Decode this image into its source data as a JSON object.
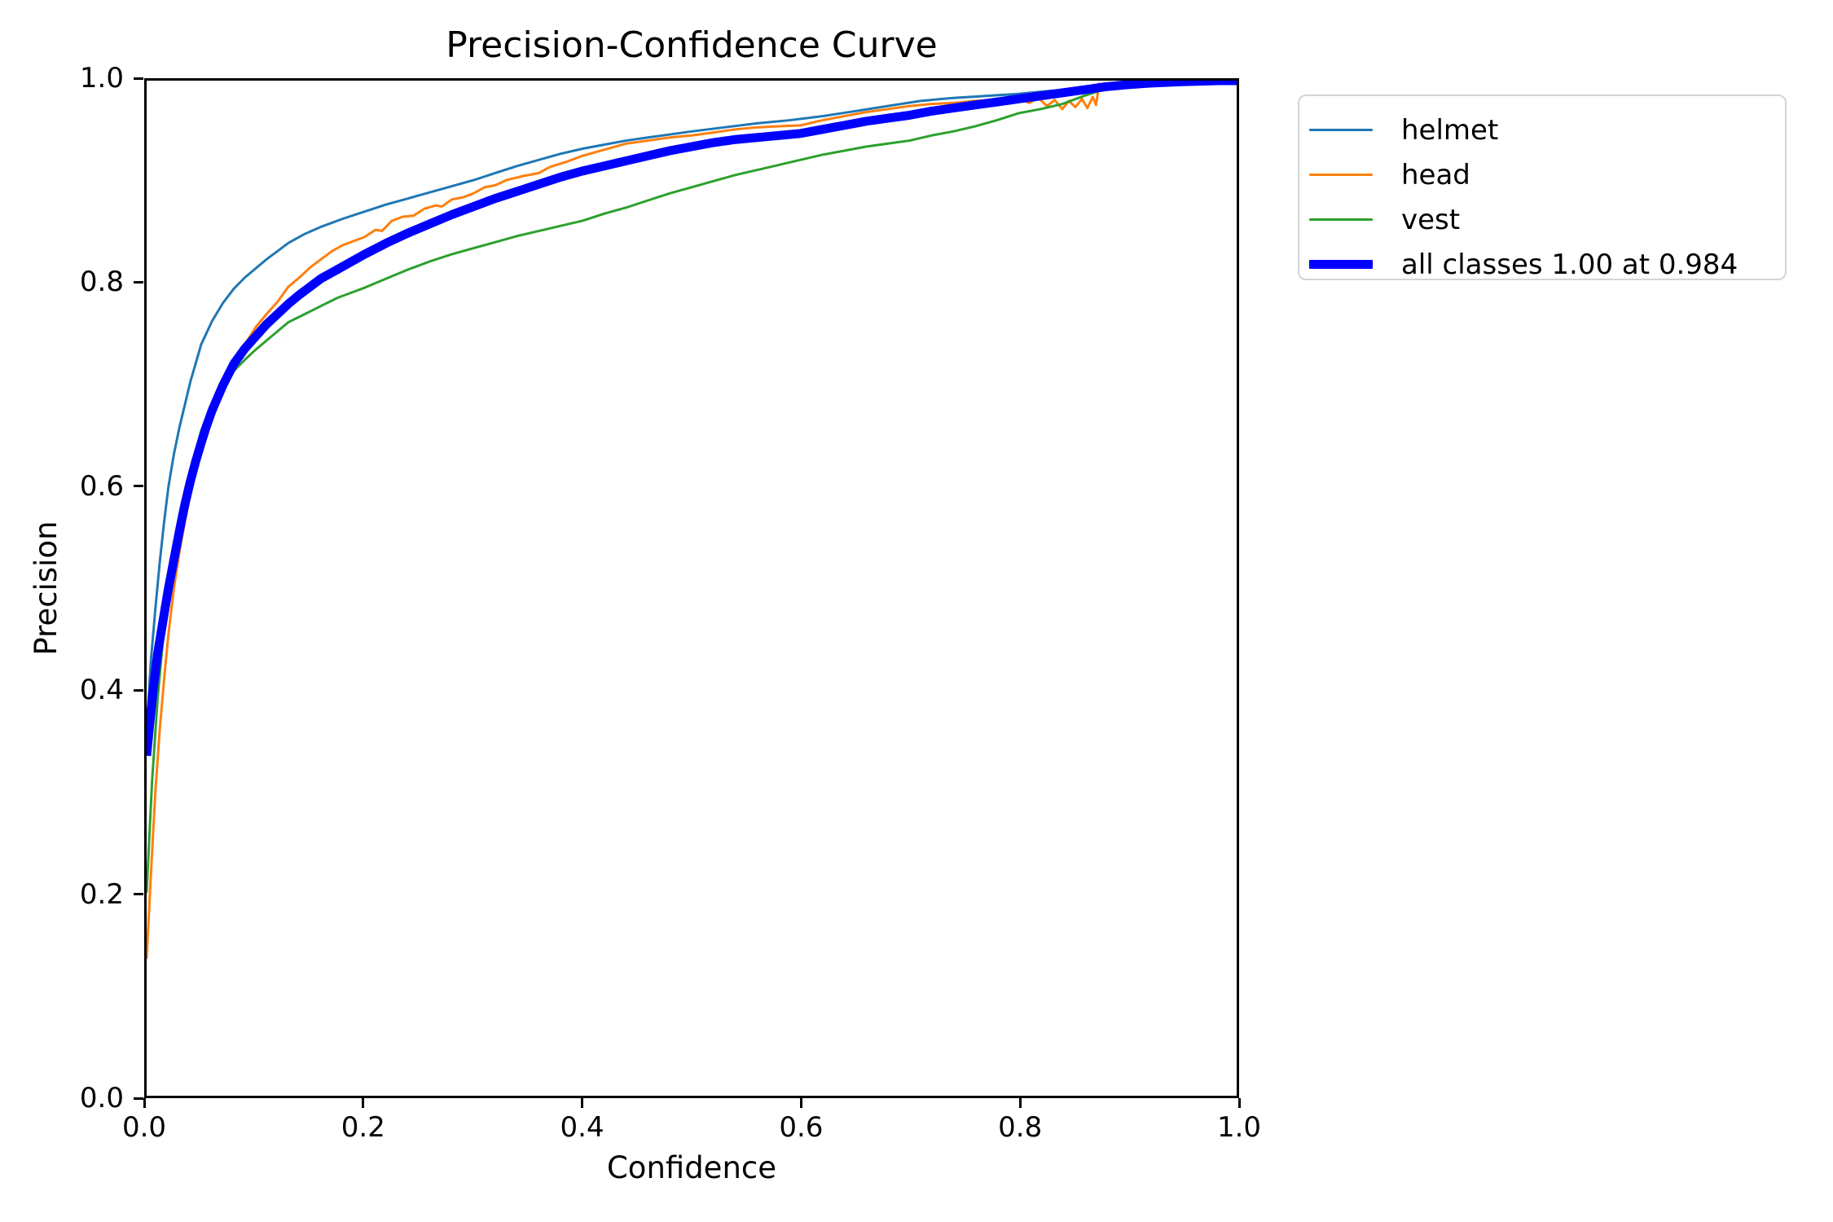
{
  "chart_data": {
    "type": "line",
    "title": "Precision-Confidence Curve",
    "xlabel": "Confidence",
    "ylabel": "Precision",
    "xlim": [
      0.0,
      1.0
    ],
    "ylim": [
      0.0,
      1.0
    ],
    "x_ticks": [
      "0.0",
      "0.2",
      "0.4",
      "0.6",
      "0.8",
      "1.0"
    ],
    "y_ticks": [
      "0.0",
      "0.2",
      "0.4",
      "0.6",
      "0.8",
      "1.0"
    ],
    "grid": false,
    "legend_position": "outside-upper-right",
    "axis_color": "#000000",
    "legend_border_color": "#d4d4d4",
    "series": [
      {
        "name": "helmet",
        "legend_label": "helmet",
        "color": "#1f77b4",
        "line_width": 3,
        "points": [
          [
            0.0,
            0.36
          ],
          [
            0.004,
            0.43
          ],
          [
            0.008,
            0.48
          ],
          [
            0.012,
            0.525
          ],
          [
            0.016,
            0.565
          ],
          [
            0.02,
            0.6
          ],
          [
            0.025,
            0.632
          ],
          [
            0.03,
            0.658
          ],
          [
            0.04,
            0.703
          ],
          [
            0.05,
            0.74
          ],
          [
            0.06,
            0.763
          ],
          [
            0.07,
            0.781
          ],
          [
            0.08,
            0.795
          ],
          [
            0.09,
            0.806
          ],
          [
            0.1,
            0.815
          ],
          [
            0.11,
            0.824
          ],
          [
            0.12,
            0.832
          ],
          [
            0.13,
            0.84
          ],
          [
            0.145,
            0.849
          ],
          [
            0.16,
            0.856
          ],
          [
            0.18,
            0.864
          ],
          [
            0.2,
            0.871
          ],
          [
            0.22,
            0.878
          ],
          [
            0.24,
            0.884
          ],
          [
            0.26,
            0.89
          ],
          [
            0.28,
            0.896
          ],
          [
            0.3,
            0.902
          ],
          [
            0.32,
            0.909
          ],
          [
            0.34,
            0.916
          ],
          [
            0.36,
            0.922
          ],
          [
            0.38,
            0.928
          ],
          [
            0.4,
            0.933
          ],
          [
            0.42,
            0.937
          ],
          [
            0.44,
            0.941
          ],
          [
            0.46,
            0.944
          ],
          [
            0.48,
            0.947
          ],
          [
            0.5,
            0.95
          ],
          [
            0.53,
            0.954
          ],
          [
            0.56,
            0.958
          ],
          [
            0.59,
            0.961
          ],
          [
            0.62,
            0.965
          ],
          [
            0.65,
            0.97
          ],
          [
            0.68,
            0.975
          ],
          [
            0.71,
            0.98
          ],
          [
            0.74,
            0.983
          ],
          [
            0.77,
            0.985
          ],
          [
            0.8,
            0.987
          ],
          [
            0.83,
            0.99
          ],
          [
            0.86,
            0.993
          ],
          [
            0.89,
            0.996
          ],
          [
            0.92,
            0.999
          ],
          [
            0.94,
            1.0
          ],
          [
            1.0,
            1.0
          ]
        ]
      },
      {
        "name": "head",
        "legend_label": "head",
        "color": "#ff7f0e",
        "line_width": 3,
        "points": [
          [
            0.0,
            0.135
          ],
          [
            0.004,
            0.22
          ],
          [
            0.008,
            0.3
          ],
          [
            0.012,
            0.36
          ],
          [
            0.016,
            0.41
          ],
          [
            0.02,
            0.455
          ],
          [
            0.025,
            0.5
          ],
          [
            0.03,
            0.535
          ],
          [
            0.035,
            0.565
          ],
          [
            0.04,
            0.592
          ],
          [
            0.045,
            0.615
          ],
          [
            0.05,
            0.635
          ],
          [
            0.055,
            0.655
          ],
          [
            0.06,
            0.67
          ],
          [
            0.07,
            0.698
          ],
          [
            0.08,
            0.72
          ],
          [
            0.09,
            0.74
          ],
          [
            0.1,
            0.757
          ],
          [
            0.11,
            0.77
          ],
          [
            0.12,
            0.782
          ],
          [
            0.13,
            0.797
          ],
          [
            0.14,
            0.806
          ],
          [
            0.15,
            0.816
          ],
          [
            0.16,
            0.824
          ],
          [
            0.17,
            0.832
          ],
          [
            0.18,
            0.838
          ],
          [
            0.19,
            0.842
          ],
          [
            0.2,
            0.846
          ],
          [
            0.21,
            0.853
          ],
          [
            0.216,
            0.852
          ],
          [
            0.225,
            0.862
          ],
          [
            0.235,
            0.866
          ],
          [
            0.245,
            0.867
          ],
          [
            0.255,
            0.874
          ],
          [
            0.265,
            0.877
          ],
          [
            0.271,
            0.876
          ],
          [
            0.28,
            0.883
          ],
          [
            0.29,
            0.885
          ],
          [
            0.3,
            0.889
          ],
          [
            0.31,
            0.895
          ],
          [
            0.32,
            0.897
          ],
          [
            0.33,
            0.902
          ],
          [
            0.345,
            0.906
          ],
          [
            0.36,
            0.909
          ],
          [
            0.37,
            0.915
          ],
          [
            0.385,
            0.92
          ],
          [
            0.4,
            0.926
          ],
          [
            0.42,
            0.932
          ],
          [
            0.44,
            0.938
          ],
          [
            0.46,
            0.941
          ],
          [
            0.48,
            0.944
          ],
          [
            0.5,
            0.946
          ],
          [
            0.52,
            0.949
          ],
          [
            0.54,
            0.952
          ],
          [
            0.56,
            0.954
          ],
          [
            0.58,
            0.955
          ],
          [
            0.6,
            0.956
          ],
          [
            0.62,
            0.961
          ],
          [
            0.64,
            0.965
          ],
          [
            0.66,
            0.969
          ],
          [
            0.68,
            0.972
          ],
          [
            0.7,
            0.975
          ],
          [
            0.72,
            0.977
          ],
          [
            0.74,
            0.978
          ],
          [
            0.76,
            0.98
          ],
          [
            0.78,
            0.981
          ],
          [
            0.8,
            0.982
          ],
          [
            0.81,
            0.978
          ],
          [
            0.818,
            0.983
          ],
          [
            0.826,
            0.975
          ],
          [
            0.833,
            0.981
          ],
          [
            0.84,
            0.972
          ],
          [
            0.846,
            0.98
          ],
          [
            0.852,
            0.974
          ],
          [
            0.858,
            0.982
          ],
          [
            0.863,
            0.973
          ],
          [
            0.868,
            0.984
          ],
          [
            0.871,
            0.976
          ],
          [
            0.874,
            0.998
          ]
        ]
      },
      {
        "name": "vest",
        "legend_label": "vest",
        "color": "#2ca02c",
        "line_width": 3,
        "points": [
          [
            0.0,
            0.2
          ],
          [
            0.005,
            0.31
          ],
          [
            0.01,
            0.39
          ],
          [
            0.015,
            0.45
          ],
          [
            0.02,
            0.5
          ],
          [
            0.025,
            0.535
          ],
          [
            0.03,
            0.565
          ],
          [
            0.04,
            0.615
          ],
          [
            0.05,
            0.655
          ],
          [
            0.06,
            0.682
          ],
          [
            0.07,
            0.7
          ],
          [
            0.08,
            0.714
          ],
          [
            0.09,
            0.725
          ],
          [
            0.1,
            0.735
          ],
          [
            0.11,
            0.744
          ],
          [
            0.12,
            0.753
          ],
          [
            0.13,
            0.762
          ],
          [
            0.145,
            0.77
          ],
          [
            0.16,
            0.778
          ],
          [
            0.175,
            0.786
          ],
          [
            0.19,
            0.792
          ],
          [
            0.2,
            0.796
          ],
          [
            0.22,
            0.805
          ],
          [
            0.24,
            0.814
          ],
          [
            0.26,
            0.822
          ],
          [
            0.28,
            0.829
          ],
          [
            0.3,
            0.835
          ],
          [
            0.32,
            0.841
          ],
          [
            0.34,
            0.847
          ],
          [
            0.36,
            0.852
          ],
          [
            0.38,
            0.857
          ],
          [
            0.4,
            0.862
          ],
          [
            0.42,
            0.869
          ],
          [
            0.44,
            0.875
          ],
          [
            0.46,
            0.882
          ],
          [
            0.48,
            0.889
          ],
          [
            0.5,
            0.895
          ],
          [
            0.52,
            0.901
          ],
          [
            0.54,
            0.907
          ],
          [
            0.56,
            0.912
          ],
          [
            0.58,
            0.917
          ],
          [
            0.6,
            0.922
          ],
          [
            0.62,
            0.927
          ],
          [
            0.64,
            0.931
          ],
          [
            0.66,
            0.935
          ],
          [
            0.68,
            0.938
          ],
          [
            0.7,
            0.941
          ],
          [
            0.72,
            0.946
          ],
          [
            0.74,
            0.95
          ],
          [
            0.76,
            0.955
          ],
          [
            0.78,
            0.961
          ],
          [
            0.8,
            0.968
          ],
          [
            0.82,
            0.972
          ],
          [
            0.84,
            0.977
          ],
          [
            0.86,
            0.985
          ],
          [
            0.88,
            0.992
          ],
          [
            0.9,
            0.997
          ],
          [
            0.92,
            1.0
          ],
          [
            1.0,
            1.0
          ]
        ]
      },
      {
        "name": "all classes",
        "legend_label": "all classes 1.00 at 0.984",
        "color": "#0000ff",
        "line_width": 11,
        "points": [
          [
            0.0,
            0.335
          ],
          [
            0.003,
            0.368
          ],
          [
            0.006,
            0.4
          ],
          [
            0.01,
            0.435
          ],
          [
            0.015,
            0.468
          ],
          [
            0.02,
            0.5
          ],
          [
            0.025,
            0.528
          ],
          [
            0.03,
            0.556
          ],
          [
            0.035,
            0.582
          ],
          [
            0.04,
            0.605
          ],
          [
            0.045,
            0.625
          ],
          [
            0.05,
            0.643
          ],
          [
            0.055,
            0.66
          ],
          [
            0.06,
            0.675
          ],
          [
            0.07,
            0.7
          ],
          [
            0.08,
            0.721
          ],
          [
            0.09,
            0.736
          ],
          [
            0.1,
            0.748
          ],
          [
            0.11,
            0.76
          ],
          [
            0.12,
            0.77
          ],
          [
            0.13,
            0.78
          ],
          [
            0.14,
            0.789
          ],
          [
            0.15,
            0.797
          ],
          [
            0.16,
            0.805
          ],
          [
            0.175,
            0.814
          ],
          [
            0.19,
            0.823
          ],
          [
            0.2,
            0.829
          ],
          [
            0.22,
            0.84
          ],
          [
            0.24,
            0.85
          ],
          [
            0.26,
            0.859
          ],
          [
            0.28,
            0.868
          ],
          [
            0.3,
            0.876
          ],
          [
            0.32,
            0.884
          ],
          [
            0.34,
            0.891
          ],
          [
            0.36,
            0.898
          ],
          [
            0.38,
            0.905
          ],
          [
            0.4,
            0.911
          ],
          [
            0.42,
            0.916
          ],
          [
            0.44,
            0.921
          ],
          [
            0.46,
            0.926
          ],
          [
            0.48,
            0.931
          ],
          [
            0.5,
            0.935
          ],
          [
            0.52,
            0.939
          ],
          [
            0.54,
            0.942
          ],
          [
            0.56,
            0.944
          ],
          [
            0.58,
            0.946
          ],
          [
            0.6,
            0.948
          ],
          [
            0.62,
            0.952
          ],
          [
            0.64,
            0.956
          ],
          [
            0.66,
            0.96
          ],
          [
            0.68,
            0.963
          ],
          [
            0.7,
            0.966
          ],
          [
            0.72,
            0.97
          ],
          [
            0.74,
            0.973
          ],
          [
            0.76,
            0.976
          ],
          [
            0.78,
            0.979
          ],
          [
            0.8,
            0.982
          ],
          [
            0.82,
            0.985
          ],
          [
            0.84,
            0.988
          ],
          [
            0.86,
            0.991
          ],
          [
            0.88,
            0.994
          ],
          [
            0.9,
            0.996
          ],
          [
            0.92,
            0.9975
          ],
          [
            0.95,
            0.999
          ],
          [
            0.984,
            1.0
          ],
          [
            1.0,
            1.0
          ]
        ]
      }
    ]
  }
}
